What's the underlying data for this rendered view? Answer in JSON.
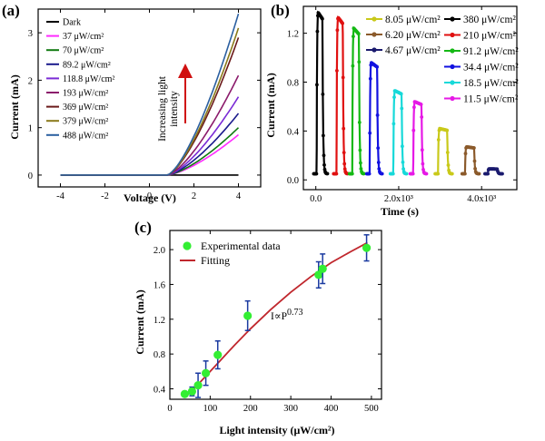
{
  "chart_data": [
    {
      "panel_label": "(a)",
      "type": "line",
      "xlabel": "Voltage (V)",
      "ylabel": "Current (mA)",
      "xlim": [
        -5,
        5
      ],
      "ylim": [
        -0.25,
        3.5
      ],
      "xticks": [
        -4,
        -2,
        0,
        2,
        4
      ],
      "yticks": [
        0,
        1,
        2,
        3
      ],
      "annotation": [
        "Increasing light",
        "intensity"
      ],
      "legend": [
        "Dark",
        "37 μW/cm²",
        "70 μW/cm²",
        "89.2 μW/cm²",
        "118.8 μW/cm²",
        "193 μW/cm²",
        "369 μW/cm²",
        "379 μW/cm²",
        "488 μW/cm²"
      ],
      "series": [
        {
          "name": "Dark",
          "color": "#000000",
          "x": [
            -4,
            4
          ],
          "y": [
            0,
            0
          ]
        },
        {
          "name": "37 μW/cm²",
          "color": "#ff2bff",
          "x": [
            -4,
            0.8,
            4
          ],
          "y": [
            0,
            0,
            0.85
          ]
        },
        {
          "name": "70 μW/cm²",
          "color": "#117a11",
          "x": [
            -4,
            0.8,
            4
          ],
          "y": [
            0,
            0,
            1.0
          ]
        },
        {
          "name": "89.2 μW/cm²",
          "color": "#1a1a8c",
          "x": [
            -4,
            0.8,
            4
          ],
          "y": [
            0,
            0,
            1.3
          ]
        },
        {
          "name": "118.8 μW/cm²",
          "color": "#7a2bd6",
          "x": [
            -4,
            0.8,
            4
          ],
          "y": [
            0,
            0,
            1.65
          ]
        },
        {
          "name": "193 μW/cm²",
          "color": "#8b1a6b",
          "x": [
            -4,
            0.8,
            4
          ],
          "y": [
            0,
            0,
            2.1
          ]
        },
        {
          "name": "369 μW/cm²",
          "color": "#6b1a1a",
          "x": [
            -4,
            0.8,
            4
          ],
          "y": [
            0,
            0,
            2.9
          ]
        },
        {
          "name": "379 μW/cm²",
          "color": "#8a7a1a",
          "x": [
            -4,
            0.8,
            4
          ],
          "y": [
            0,
            0,
            3.1
          ]
        },
        {
          "name": "488 μW/cm²",
          "color": "#2b5fa0",
          "x": [
            -4,
            0.8,
            4
          ],
          "y": [
            0,
            0,
            3.4
          ]
        }
      ]
    },
    {
      "panel_label": "(b)",
      "type": "line",
      "xlabel": "Time (s)",
      "ylabel": "Current (mA)",
      "xlim": [
        -300,
        4850
      ],
      "ylim": [
        -0.08,
        1.42
      ],
      "xticks": [
        0,
        2000,
        4000
      ],
      "xtick_labels": [
        "0.0",
        "2.0x10³",
        "4.0x10³"
      ],
      "yticks": [
        0.0,
        0.4,
        0.8,
        1.2
      ],
      "ytick_labels": [
        "0.0",
        "0.4",
        "0.8",
        "1.2"
      ],
      "legend": [
        "8.05 μW/cm²",
        "6.20 μW/cm²",
        "4.67 μW/cm²",
        "380 μW/cm²",
        "210 μW/cm²",
        "91.2 μW/cm²",
        "34.4 μW/cm²",
        "18.5 μW/cm²",
        "11.5 μW/cm²"
      ],
      "pulses": [
        {
          "name": "380 μW/cm²",
          "color": "#000000",
          "start": 20,
          "width": 140,
          "peak": 1.37
        },
        {
          "name": "210 μW/cm²",
          "color": "#e01010",
          "start": 500,
          "width": 150,
          "peak": 1.33
        },
        {
          "name": "91.2 μW/cm²",
          "color": "#14b814",
          "start": 880,
          "width": 160,
          "peak": 1.24
        },
        {
          "name": "34.4 μW/cm²",
          "color": "#1212e0",
          "start": 1300,
          "width": 180,
          "peak": 0.96
        },
        {
          "name": "18.5 μW/cm²",
          "color": "#17d9d9",
          "start": 1870,
          "width": 200,
          "peak": 0.73
        },
        {
          "name": "11.5 μW/cm²",
          "color": "#e619e6",
          "start": 2350,
          "width": 200,
          "peak": 0.64
        },
        {
          "name": "8.05 μW/cm²",
          "color": "#c9c91a",
          "start": 2950,
          "width": 220,
          "peak": 0.42
        },
        {
          "name": "6.20 μW/cm²",
          "color": "#8b5a2b",
          "start": 3600,
          "width": 220,
          "peak": 0.27
        },
        {
          "name": "4.67 μW/cm²",
          "color": "#1a1a6e",
          "start": 4150,
          "width": 230,
          "peak": 0.09
        }
      ]
    },
    {
      "panel_label": "(c)",
      "type": "scatter",
      "xlabel": "Light intensity (μW/cm²)",
      "ylabel": "Current (mA)",
      "xlim": [
        0,
        525
      ],
      "ylim": [
        0.28,
        2.22
      ],
      "xticks": [
        0,
        100,
        200,
        300,
        400,
        500
      ],
      "yticks": [
        0.4,
        0.8,
        1.2,
        1.6,
        2.0
      ],
      "legend": [
        "Experimental data",
        "Fitting"
      ],
      "annotation": {
        "prefix": "I∝P",
        "exponent": "0.73"
      },
      "series": [
        {
          "name": "Experimental data",
          "color": "#33ee33",
          "x": [
            37,
            55,
            70,
            89.2,
            118.8,
            193,
            369,
            379,
            488
          ],
          "y": [
            0.34,
            0.37,
            0.44,
            0.58,
            0.79,
            1.24,
            1.71,
            1.78,
            2.02
          ],
          "error": [
            0.02,
            0.05,
            0.14,
            0.14,
            0.16,
            0.17,
            0.15,
            0.17,
            0.15
          ]
        },
        {
          "name": "Fitting",
          "color": "#c0272d",
          "x": [
            40,
            60,
            90,
            120,
            160,
            200,
            250,
            300,
            350,
            400,
            450,
            490
          ],
          "y": [
            0.32,
            0.4,
            0.55,
            0.7,
            0.9,
            1.09,
            1.31,
            1.51,
            1.69,
            1.85,
            1.98,
            2.08
          ]
        }
      ]
    }
  ]
}
